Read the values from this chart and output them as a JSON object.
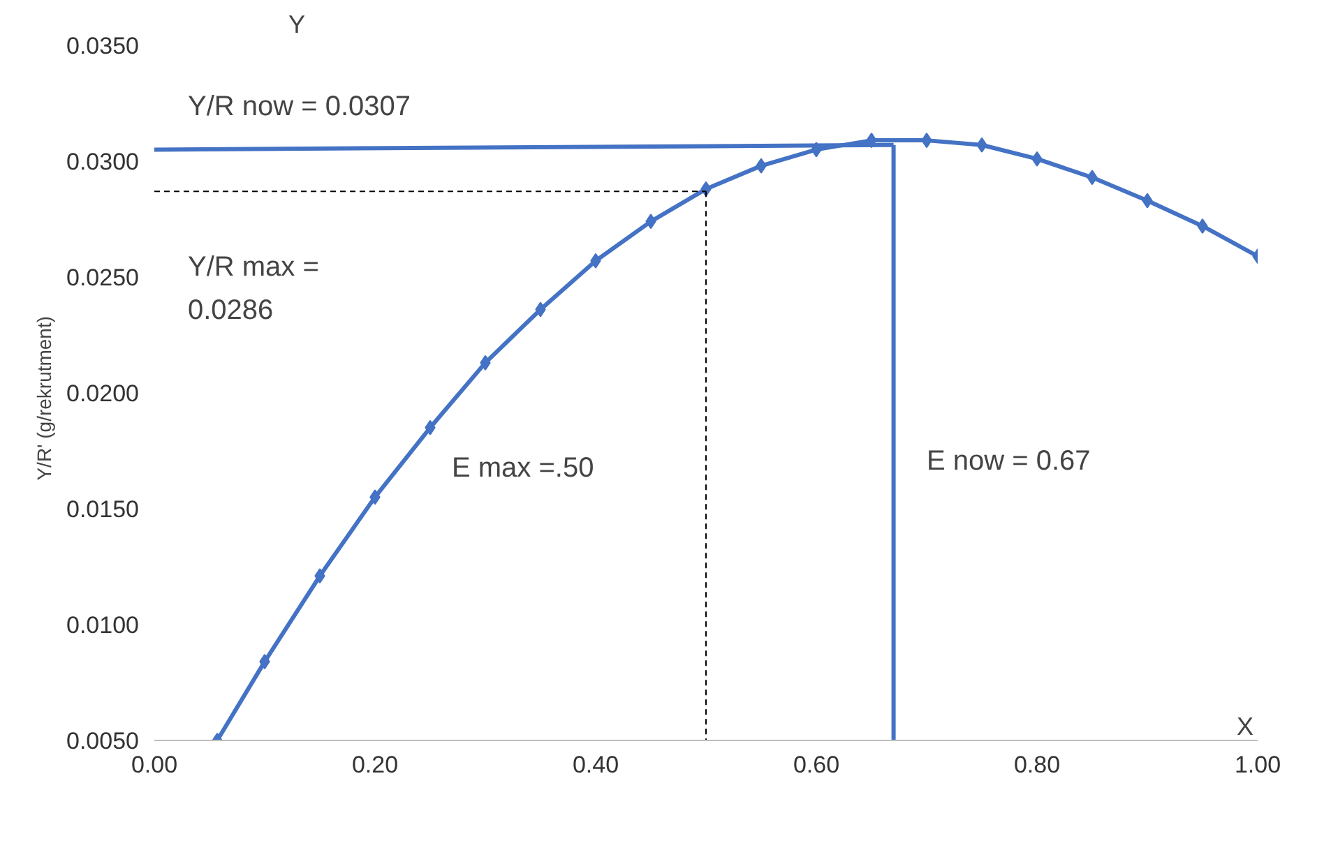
{
  "chart_data": {
    "type": "line",
    "xlabel": "X",
    "ylabel": "Y/R'   (g/rekrutment)",
    "xlim": [
      0,
      1
    ],
    "ylim": [
      0.005,
      0.035
    ],
    "xticks": [
      {
        "value": 0,
        "label": "0.00"
      },
      {
        "value": 0.2,
        "label": "0.20"
      },
      {
        "value": 0.4,
        "label": "0.40"
      },
      {
        "value": 0.6,
        "label": "0.60"
      },
      {
        "value": 0.8,
        "label": "0.80"
      },
      {
        "value": 1,
        "label": "1.00"
      }
    ],
    "yticks": [
      {
        "value": 0.005,
        "label": "0.0050"
      },
      {
        "value": 0.01,
        "label": "0.0100"
      },
      {
        "value": 0.015,
        "label": "0.0150"
      },
      {
        "value": 0.02,
        "label": "0.0200"
      },
      {
        "value": 0.025,
        "label": "0.0250"
      },
      {
        "value": 0.03,
        "label": "0.0300"
      },
      {
        "value": 0.035,
        "label": "0.0350"
      }
    ],
    "grid": false,
    "marker": "diamond",
    "line_style": "solid",
    "series": [
      {
        "color": "#4472c4",
        "x": [
          0.057,
          0.1,
          0.15,
          0.2,
          0.25,
          0.3,
          0.35,
          0.4,
          0.45,
          0.5,
          0.55,
          0.6,
          0.65,
          0.7,
          0.75,
          0.8,
          0.85,
          0.9,
          0.95,
          1.0
        ],
        "values": [
          0.005,
          0.0084,
          0.0121,
          0.0155,
          0.0185,
          0.0213,
          0.0236,
          0.0257,
          0.0274,
          0.0288,
          0.0298,
          0.0305,
          0.0309,
          0.0309,
          0.0307,
          0.0301,
          0.0293,
          0.0283,
          0.0272,
          0.0259
        ]
      },
      {
        "color": "#4472c4",
        "marker": "none",
        "x": [
          0,
          0.67
        ],
        "values": [
          0.0305,
          0.0307
        ]
      },
      {
        "color": "#4472c4",
        "marker": "none",
        "x": [
          0.67,
          0.67
        ],
        "values": [
          0.005,
          0.0307
        ]
      },
      {
        "color": "#000000",
        "marker": "none",
        "line_style": "dashed",
        "x": [
          0,
          0.5
        ],
        "values": [
          0.0287,
          0.0287
        ]
      },
      {
        "color": "#000000",
        "marker": "none",
        "line_style": "dashed",
        "x": [
          0.5,
          0.5
        ],
        "values": [
          0.0287,
          0.005
        ]
      }
    ],
    "annotations": [
      "Y",
      "Y/R now = 0.0307",
      "Y/R max =\n0.0286",
      "E max =.50",
      "E now = 0.67"
    ]
  }
}
